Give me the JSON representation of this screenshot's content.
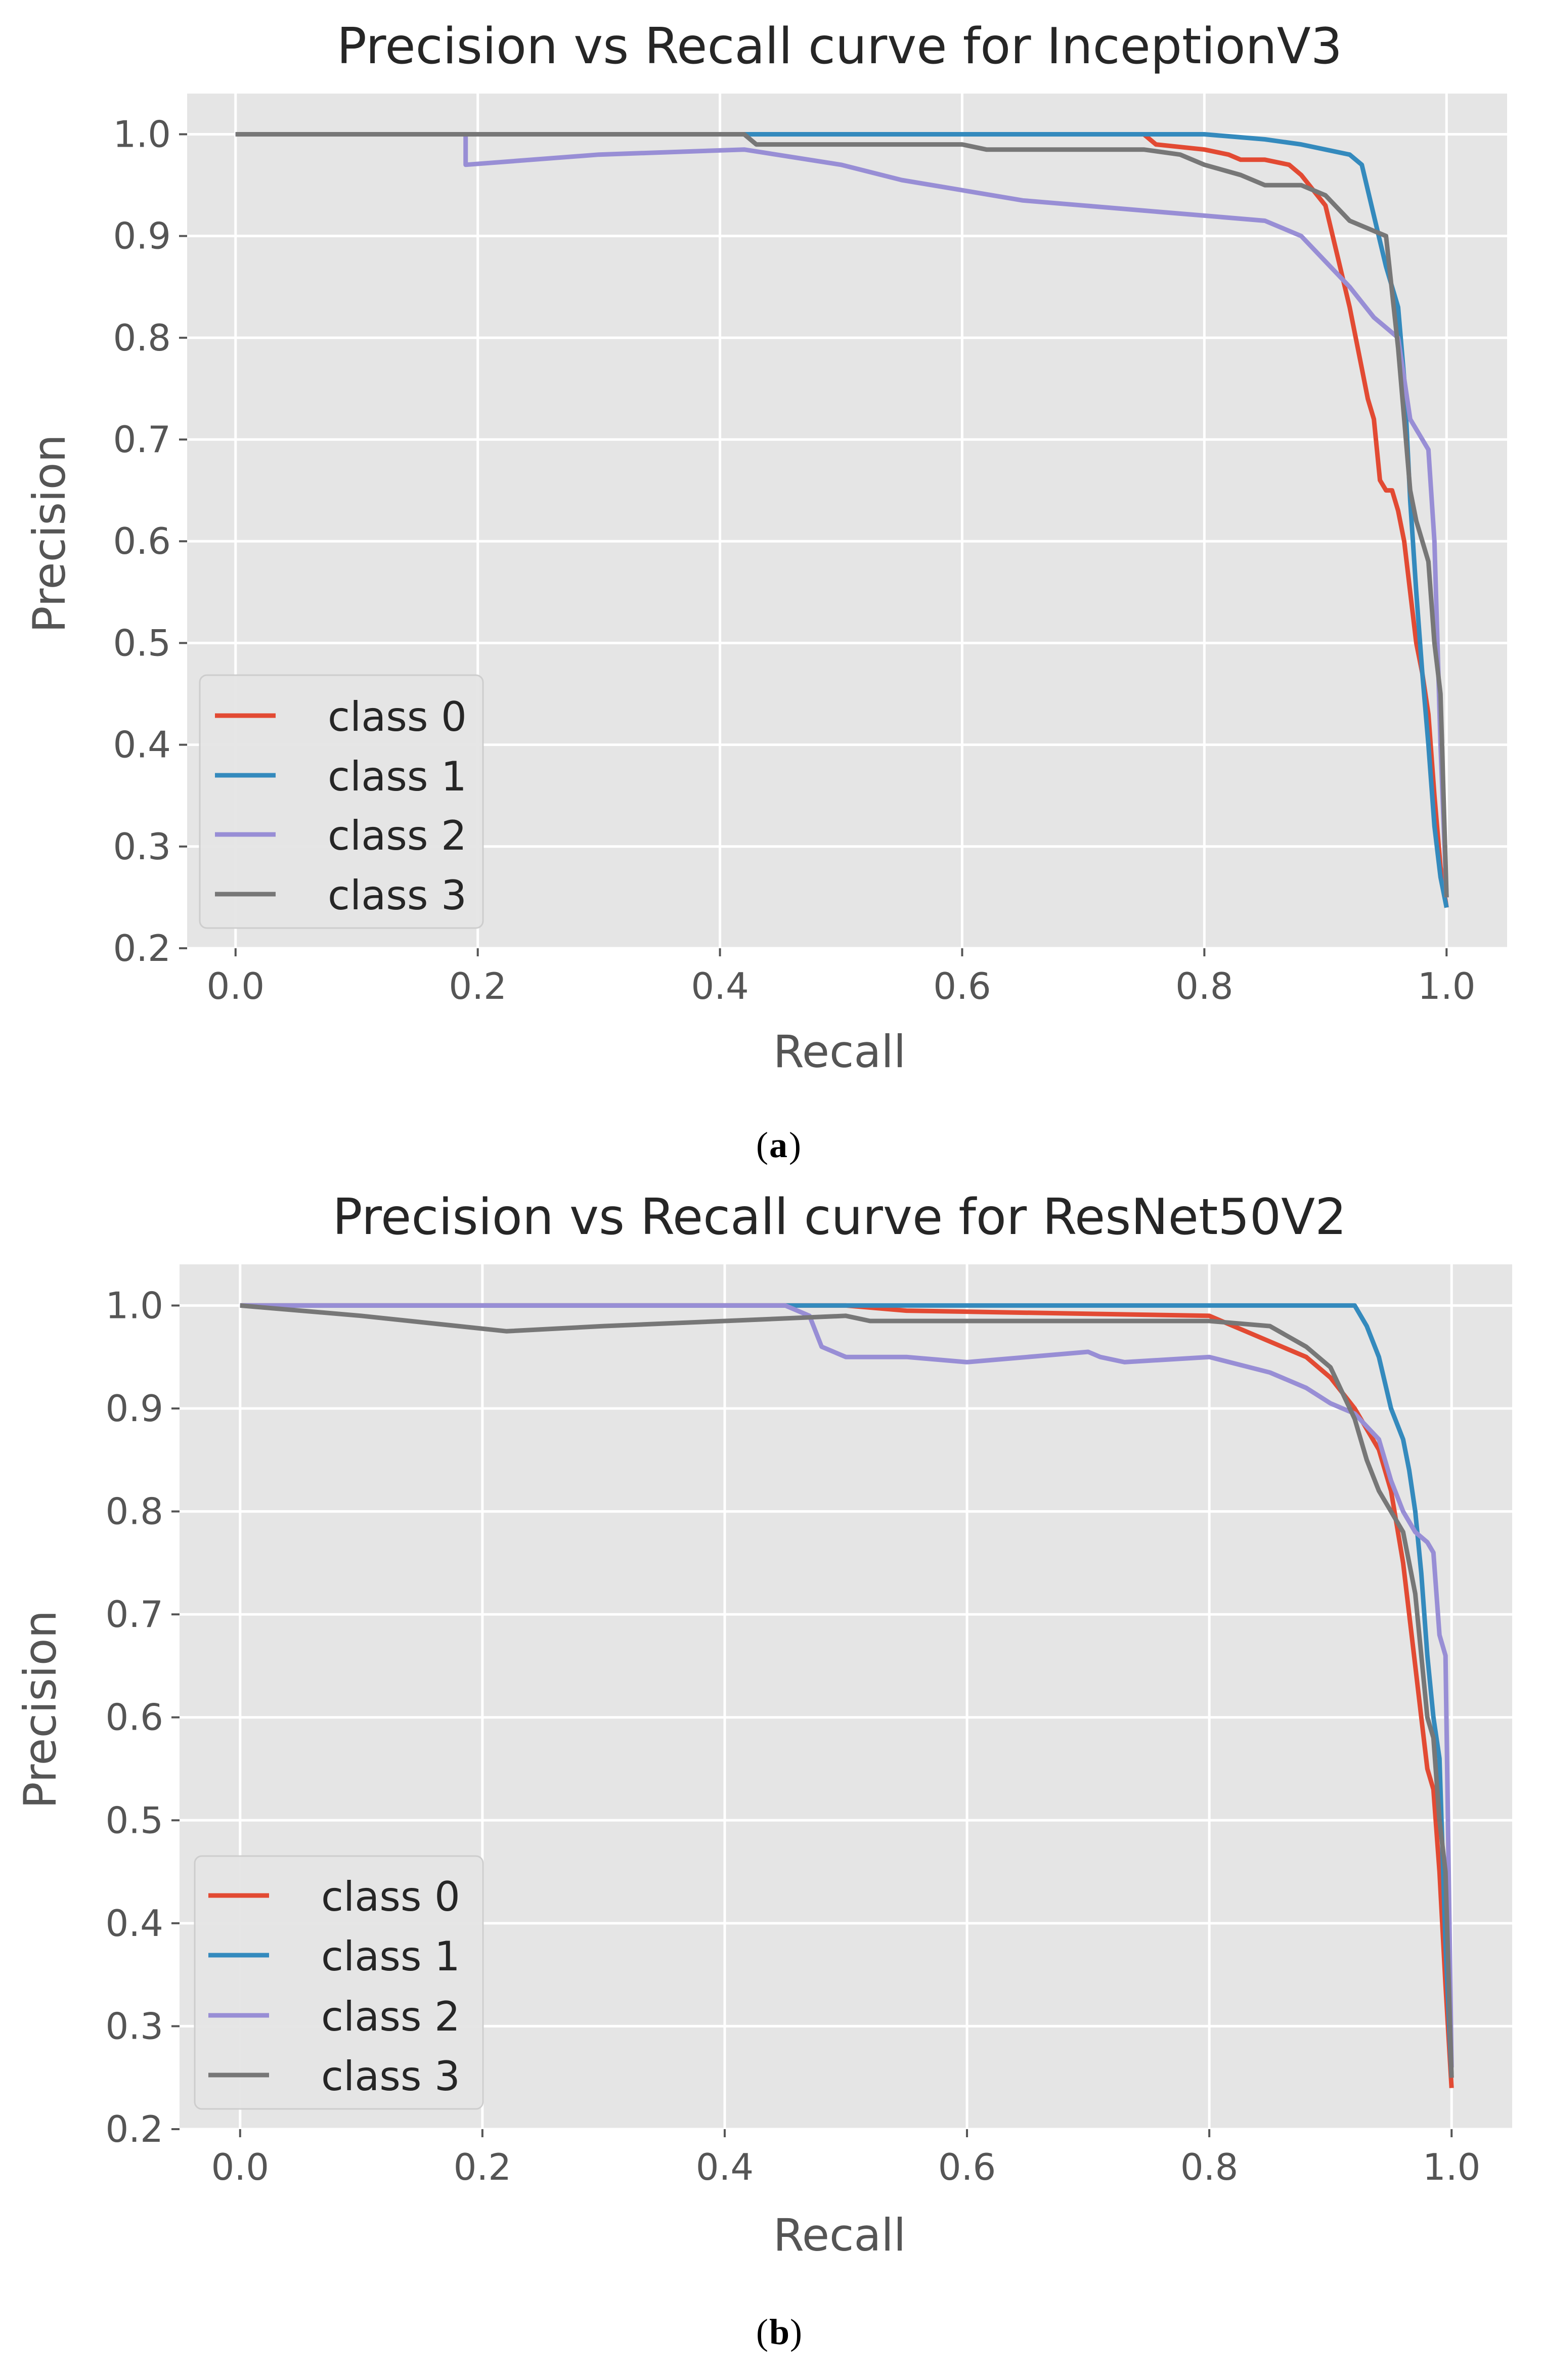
{
  "chart_data": [
    {
      "type": "line",
      "title": "Precision vs Recall curve for InceptionV3",
      "xlabel": "Recall",
      "ylabel": "Precision",
      "xlim": [
        -0.04,
        1.05
      ],
      "ylim": [
        0.2,
        1.04
      ],
      "xticks": [
        0.0,
        0.2,
        0.4,
        0.6,
        0.8,
        1.0
      ],
      "xtick_labels": [
        "0.0",
        "0.2",
        "0.4",
        "0.6",
        "0.8",
        "1.0"
      ],
      "yticks": [
        0.2,
        0.3,
        0.4,
        0.5,
        0.6,
        0.7,
        0.8,
        0.9,
        1.0
      ],
      "ytick_labels": [
        "0.2",
        "0.3",
        "0.4",
        "0.5",
        "0.6",
        "0.7",
        "0.8",
        "0.9",
        "1.0"
      ],
      "grid": true,
      "legend_position": "lower-left",
      "caption_label": "a",
      "series": [
        {
          "name": "class 0",
          "color": "#E24A33",
          "x": [
            0.0,
            0.75,
            0.76,
            0.8,
            0.82,
            0.83,
            0.85,
            0.87,
            0.88,
            0.9,
            0.91,
            0.92,
            0.93,
            0.935,
            0.94,
            0.945,
            0.95,
            0.955,
            0.96,
            0.965,
            0.97,
            0.975,
            0.98,
            0.985,
            0.99,
            0.995,
            1.0
          ],
          "y": [
            1.0,
            1.0,
            0.99,
            0.985,
            0.98,
            0.975,
            0.975,
            0.97,
            0.96,
            0.93,
            0.88,
            0.83,
            0.77,
            0.74,
            0.72,
            0.66,
            0.65,
            0.65,
            0.63,
            0.6,
            0.55,
            0.5,
            0.47,
            0.43,
            0.35,
            0.28,
            0.24
          ]
        },
        {
          "name": "class 1",
          "color": "#348ABD",
          "x": [
            0.0,
            0.8,
            0.85,
            0.88,
            0.9,
            0.92,
            0.93,
            0.94,
            0.95,
            0.96,
            0.965,
            0.97,
            0.975,
            0.98,
            0.985,
            0.99,
            0.995,
            1.0
          ],
          "y": [
            1.0,
            1.0,
            0.995,
            0.99,
            0.985,
            0.98,
            0.97,
            0.92,
            0.87,
            0.83,
            0.76,
            0.64,
            0.55,
            0.47,
            0.4,
            0.32,
            0.27,
            0.24
          ]
        },
        {
          "name": "class 2",
          "color": "#988ED5",
          "x": [
            0.0,
            0.19,
            0.19,
            0.3,
            0.42,
            0.5,
            0.55,
            0.6,
            0.65,
            0.7,
            0.75,
            0.8,
            0.85,
            0.88,
            0.9,
            0.92,
            0.94,
            0.95,
            0.96,
            0.97,
            0.975,
            0.98,
            0.985,
            0.99,
            0.995,
            1.0
          ],
          "y": [
            1.0,
            1.0,
            0.97,
            0.98,
            0.985,
            0.97,
            0.955,
            0.945,
            0.935,
            0.93,
            0.925,
            0.92,
            0.915,
            0.9,
            0.875,
            0.85,
            0.82,
            0.81,
            0.8,
            0.72,
            0.71,
            0.7,
            0.69,
            0.6,
            0.4,
            0.25
          ]
        },
        {
          "name": "class 3",
          "color": "#777777",
          "x": [
            0.0,
            0.42,
            0.43,
            0.6,
            0.62,
            0.75,
            0.78,
            0.8,
            0.83,
            0.85,
            0.88,
            0.9,
            0.92,
            0.94,
            0.95,
            0.96,
            0.965,
            0.97,
            0.975,
            0.98,
            0.985,
            0.99,
            0.995,
            1.0
          ],
          "y": [
            1.0,
            1.0,
            0.99,
            0.99,
            0.985,
            0.985,
            0.98,
            0.97,
            0.96,
            0.95,
            0.95,
            0.94,
            0.915,
            0.905,
            0.9,
            0.79,
            0.72,
            0.65,
            0.62,
            0.6,
            0.58,
            0.5,
            0.45,
            0.25
          ]
        }
      ]
    },
    {
      "type": "line",
      "title": "Precision vs Recall curve for ResNet50V2",
      "xlabel": "Recall",
      "ylabel": "Precision",
      "xlim": [
        -0.05,
        1.05
      ],
      "ylim": [
        0.2,
        1.04
      ],
      "xticks": [
        0.0,
        0.2,
        0.4,
        0.6,
        0.8,
        1.0
      ],
      "xtick_labels": [
        "0.0",
        "0.2",
        "0.4",
        "0.6",
        "0.8",
        "1.0"
      ],
      "yticks": [
        0.2,
        0.3,
        0.4,
        0.5,
        0.6,
        0.7,
        0.8,
        0.9,
        1.0
      ],
      "ytick_labels": [
        "0.2",
        "0.3",
        "0.4",
        "0.5",
        "0.6",
        "0.7",
        "0.8",
        "0.9",
        "1.0"
      ],
      "grid": true,
      "legend_position": "lower-left",
      "caption_label": "b",
      "series": [
        {
          "name": "class 0",
          "color": "#E24A33",
          "x": [
            0.0,
            0.5,
            0.55,
            0.8,
            0.82,
            0.84,
            0.86,
            0.88,
            0.9,
            0.92,
            0.94,
            0.95,
            0.96,
            0.965,
            0.97,
            0.975,
            0.98,
            0.985,
            0.99,
            0.995,
            1.0
          ],
          "y": [
            1.0,
            1.0,
            0.995,
            0.99,
            0.98,
            0.97,
            0.96,
            0.95,
            0.93,
            0.9,
            0.86,
            0.82,
            0.75,
            0.7,
            0.65,
            0.6,
            0.55,
            0.53,
            0.45,
            0.34,
            0.24
          ]
        },
        {
          "name": "class 1",
          "color": "#348ABD",
          "x": [
            0.0,
            0.45,
            0.5,
            0.92,
            0.93,
            0.94,
            0.95,
            0.96,
            0.965,
            0.97,
            0.975,
            0.98,
            0.985,
            0.99,
            0.995,
            1.0
          ],
          "y": [
            1.0,
            1.0,
            1.0,
            1.0,
            0.98,
            0.95,
            0.9,
            0.87,
            0.84,
            0.8,
            0.74,
            0.66,
            0.6,
            0.56,
            0.38,
            0.25
          ]
        },
        {
          "name": "class 2",
          "color": "#988ED5",
          "x": [
            0.0,
            0.45,
            0.47,
            0.48,
            0.5,
            0.55,
            0.6,
            0.7,
            0.71,
            0.73,
            0.8,
            0.85,
            0.88,
            0.9,
            0.92,
            0.94,
            0.95,
            0.96,
            0.97,
            0.98,
            0.985,
            0.99,
            0.995,
            1.0
          ],
          "y": [
            1.0,
            1.0,
            0.99,
            0.96,
            0.95,
            0.95,
            0.945,
            0.955,
            0.95,
            0.945,
            0.95,
            0.935,
            0.92,
            0.905,
            0.895,
            0.87,
            0.83,
            0.8,
            0.78,
            0.77,
            0.76,
            0.68,
            0.66,
            0.26
          ]
        },
        {
          "name": "class 3",
          "color": "#777777",
          "x": [
            0.0,
            0.1,
            0.22,
            0.3,
            0.4,
            0.5,
            0.52,
            0.6,
            0.7,
            0.8,
            0.85,
            0.88,
            0.9,
            0.92,
            0.93,
            0.94,
            0.95,
            0.96,
            0.97,
            0.98,
            0.985,
            0.99,
            0.995,
            1.0
          ],
          "y": [
            1.0,
            0.99,
            0.975,
            0.98,
            0.985,
            0.99,
            0.985,
            0.985,
            0.985,
            0.985,
            0.98,
            0.96,
            0.94,
            0.89,
            0.85,
            0.82,
            0.8,
            0.78,
            0.72,
            0.6,
            0.58,
            0.5,
            0.45,
            0.25
          ]
        }
      ]
    }
  ]
}
